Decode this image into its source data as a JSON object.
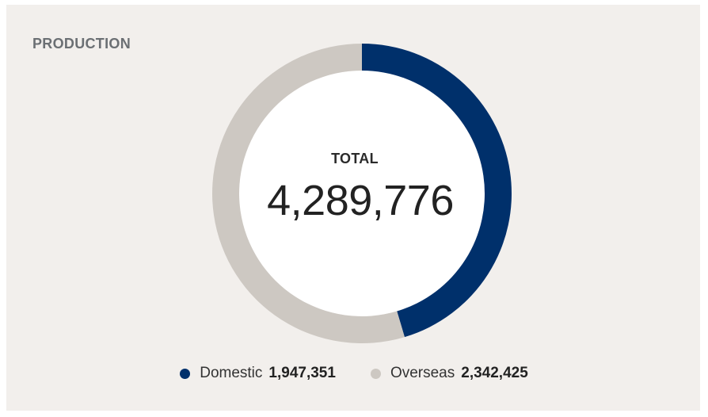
{
  "card": {
    "title": "PRODUCTION"
  },
  "center": {
    "label": "TOTAL",
    "value": "4,289,776"
  },
  "legend": [
    {
      "name": "Domestic",
      "value": "1,947,351",
      "color": "#00306b"
    },
    {
      "name": "Overseas",
      "value": "2,342,425",
      "color": "#cdc8c2"
    }
  ],
  "chart_data": {
    "type": "pie",
    "variant": "donut",
    "title": "PRODUCTION",
    "center_label": "TOTAL",
    "total": 4289776,
    "slices": [
      {
        "name": "Domestic",
        "value": 1947351,
        "color": "#00306b"
      },
      {
        "name": "Overseas",
        "value": 2342425,
        "color": "#cdc8c2"
      }
    ],
    "start_angle": "top",
    "direction": "clockwise",
    "legend_placement": "bottom-center"
  }
}
